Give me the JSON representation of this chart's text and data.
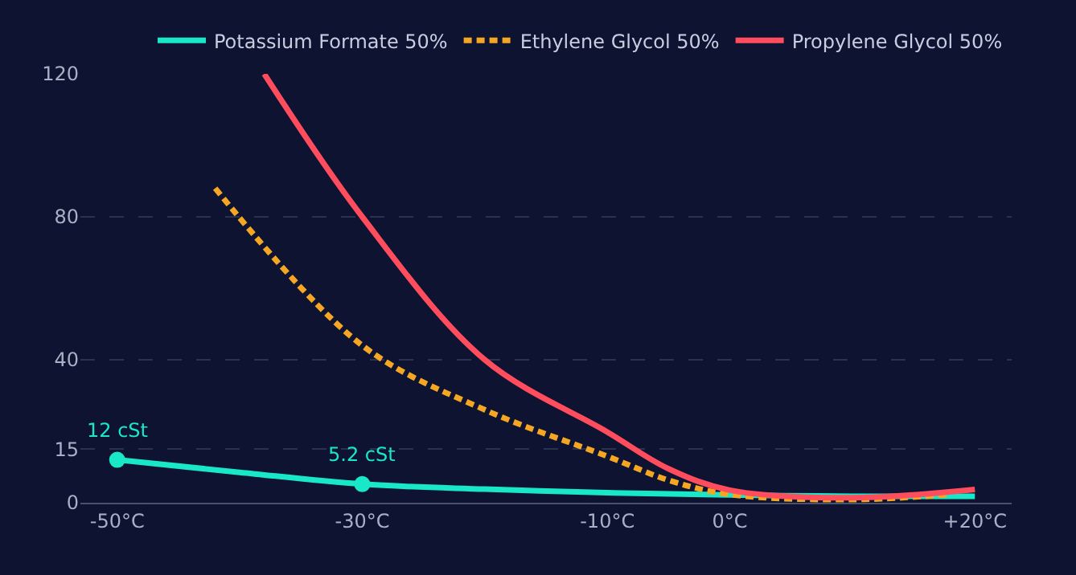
{
  "chart_data": {
    "type": "line",
    "xlim": [
      -53,
      23
    ],
    "ylim": [
      0,
      120
    ],
    "xticks": [
      {
        "value": -50,
        "label": "-50°C"
      },
      {
        "value": -30,
        "label": "-30°C"
      },
      {
        "value": -10,
        "label": "-10°C"
      },
      {
        "value": 0,
        "label": "0°C"
      },
      {
        "value": 20,
        "label": "+20°C"
      }
    ],
    "yticks": [
      0,
      15,
      40,
      80,
      120
    ],
    "grid": "y",
    "legend": "top",
    "line_style": "solid",
    "marker": "none",
    "series": [
      {
        "name": "Potassium Formate 50%",
        "color": "#19e8c8",
        "x": [
          -50,
          -40,
          -30,
          -20,
          -10,
          0,
          10,
          20
        ],
        "values": [
          12,
          8.5,
          5.2,
          3.8,
          2.8,
          2.2,
          1.8,
          1.8
        ]
      },
      {
        "name": "Ethylene Glycol 50%",
        "color": "#f5a623",
        "line_style": "dashed",
        "x": [
          -42,
          -30,
          -20,
          -10,
          -5,
          0,
          10,
          18
        ],
        "values": [
          88,
          44,
          26,
          13,
          6.3,
          2.3,
          0.9,
          2.3
        ]
      },
      {
        "name": "Propylene Glycol 50%",
        "color": "#ff4d5e",
        "x": [
          -38,
          -30,
          -20,
          -10,
          -5,
          0,
          10,
          20
        ],
        "values": [
          120,
          80,
          40,
          19.8,
          9.5,
          3.5,
          1.4,
          3.7
        ]
      },
      {
        "type": "scatter",
        "marker": "circle",
        "color": "#19e8c8",
        "x": [
          -50,
          -30
        ],
        "values": [
          12,
          5.2
        ]
      }
    ],
    "annotations": [
      {
        "text": "12 cSt",
        "x": -50,
        "y": 12
      },
      {
        "text": "5.2 cSt",
        "x": -30,
        "y": 5.2
      }
    ]
  }
}
